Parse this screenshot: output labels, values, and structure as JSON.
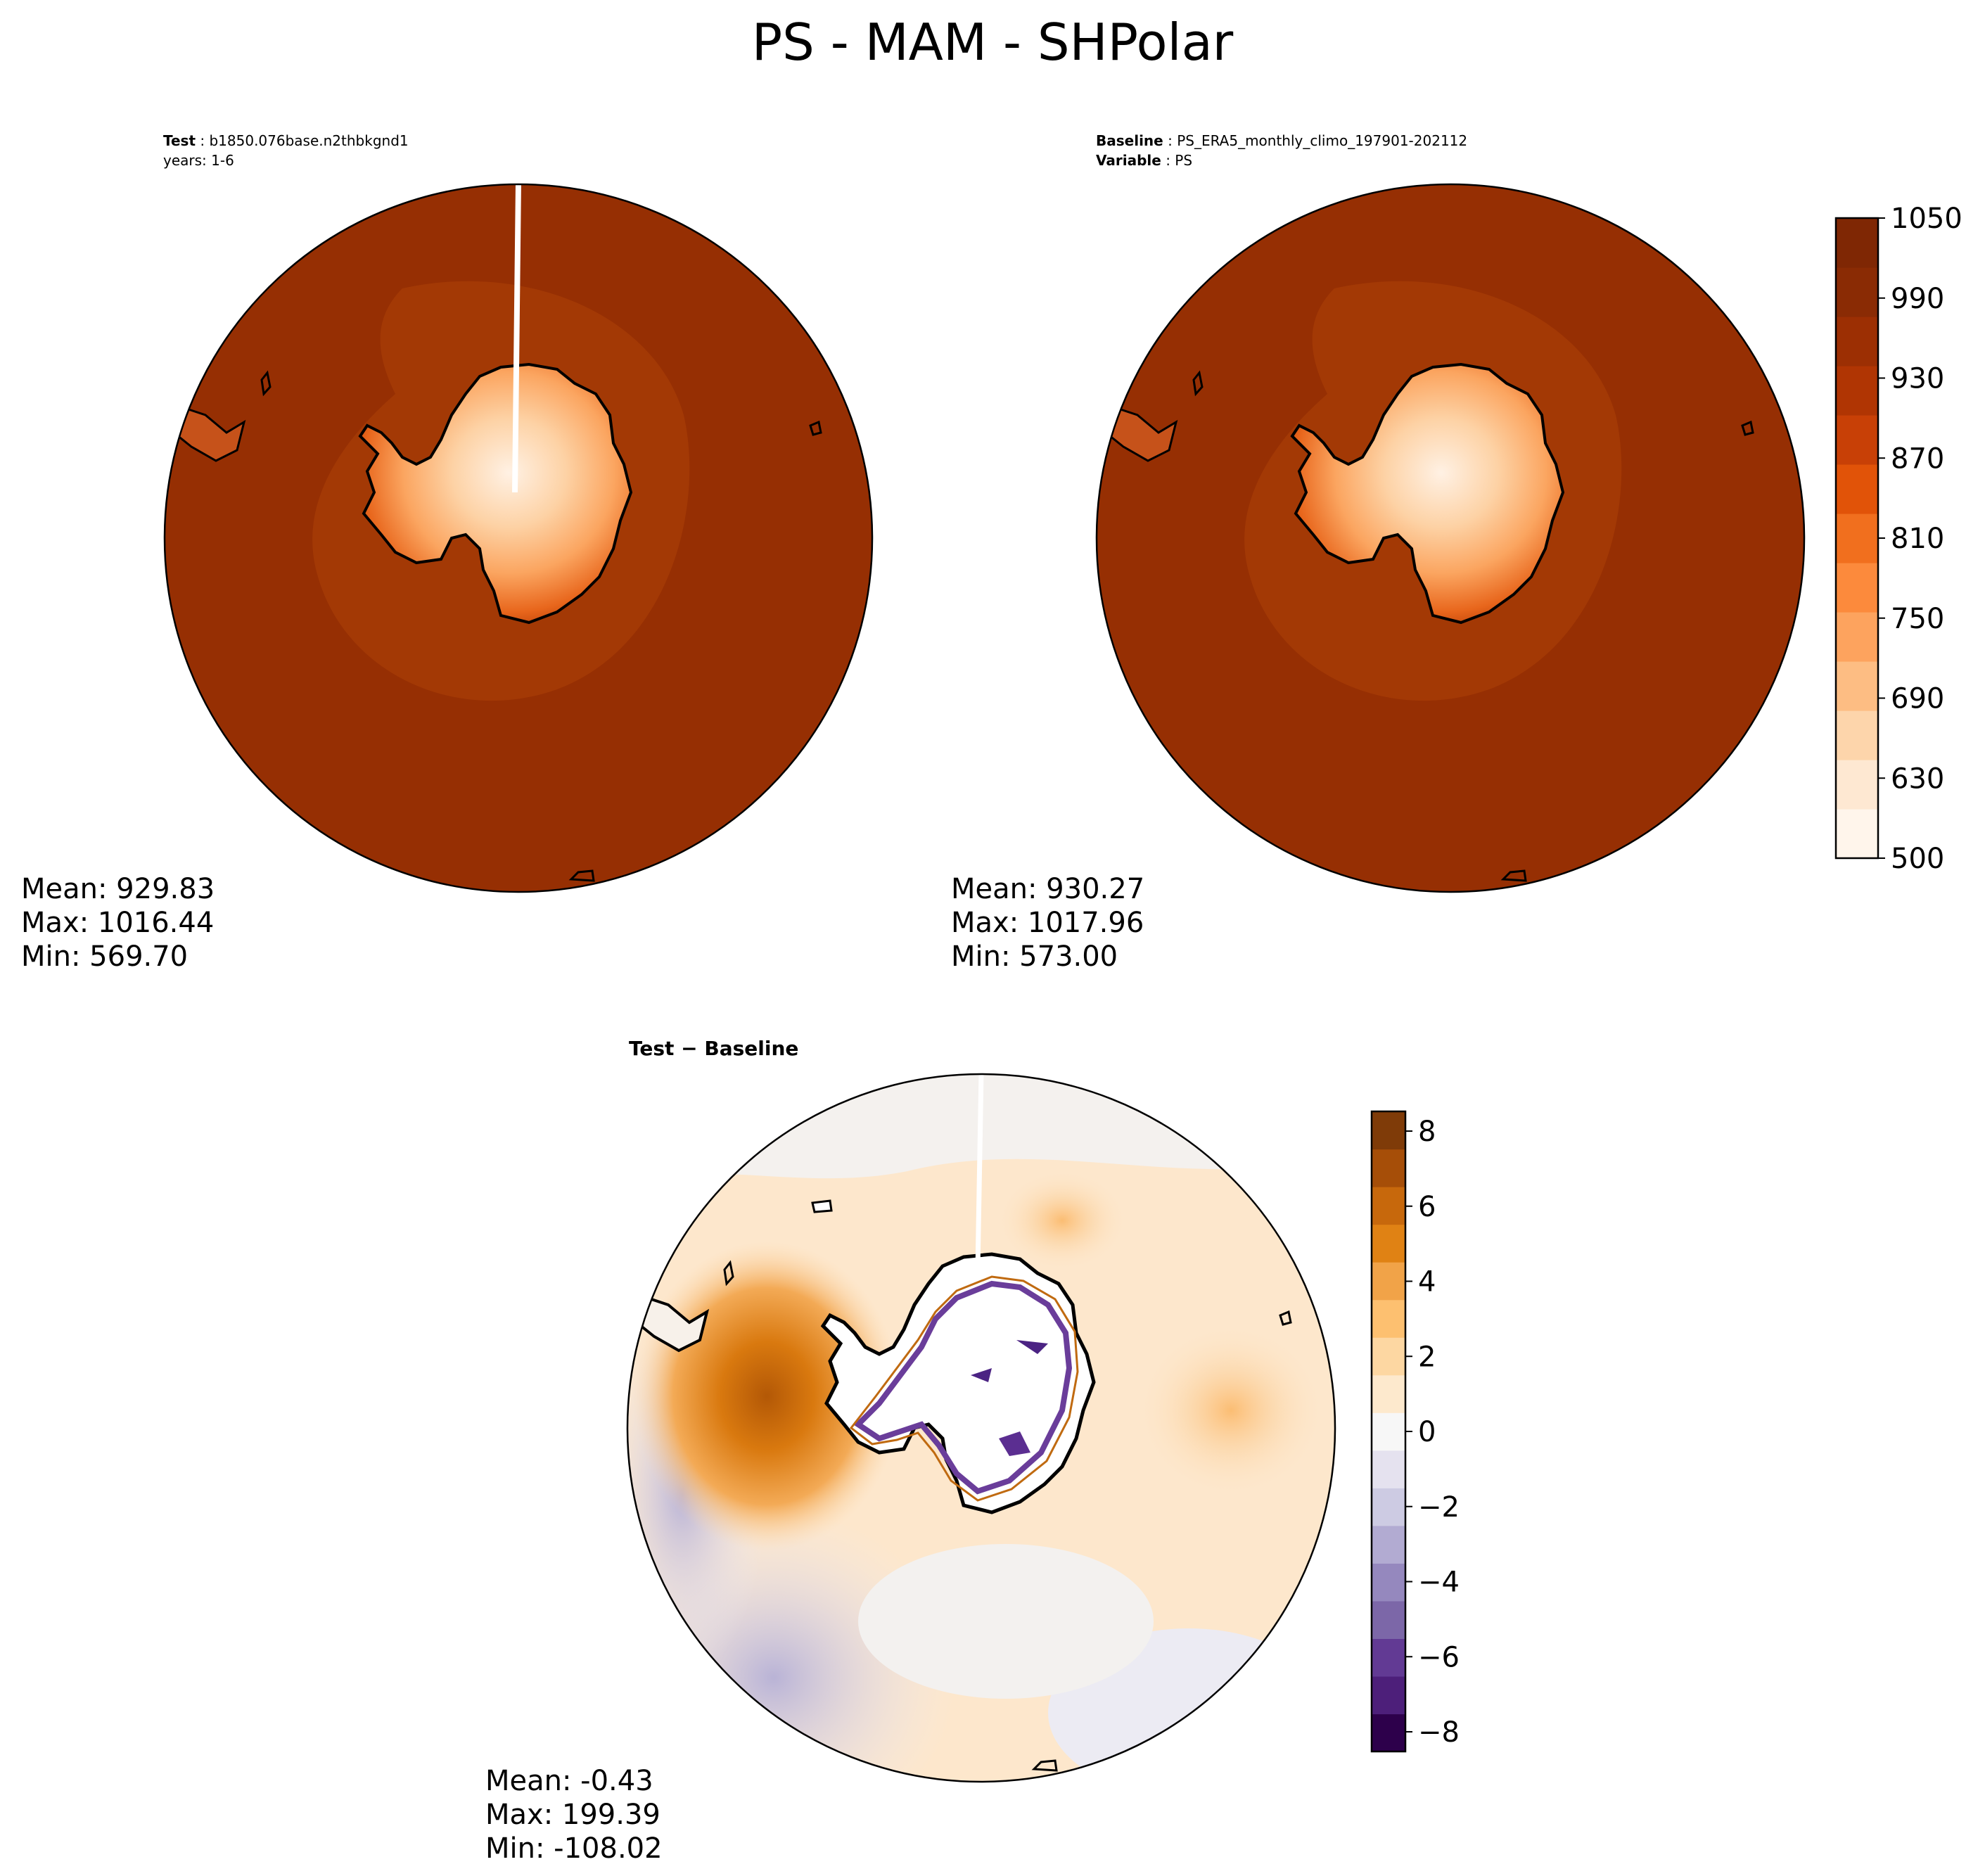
{
  "figure": {
    "title": "PS - MAM - SHPolar"
  },
  "test_panel": {
    "label": "Test",
    "case": "b1850.076base.n2thbkgnd1",
    "years": "years: 1-6",
    "stats": {
      "mean": "Mean: 929.83",
      "max": "Max: 1016.44",
      "min": "Min: 569.70"
    }
  },
  "baseline_panel": {
    "label": "Baseline",
    "case": "PS_ERA5_monthly_climo_197901-202112",
    "variable_label": "Variable",
    "variable": "PS",
    "stats": {
      "mean": "Mean: 930.27",
      "max": "Max: 1017.96",
      "min": "Min: 573.00"
    }
  },
  "diff_panel": {
    "title_left": "Test",
    "title_op": "−",
    "title_right": "Baseline",
    "stats": {
      "mean": "Mean: -0.43",
      "max": "Max: 199.39",
      "min": "Min: -108.02"
    }
  },
  "abs_colorbar": {
    "ticks": [
      "500",
      "630",
      "690",
      "750",
      "810",
      "870",
      "930",
      "990",
      "1050"
    ],
    "colors": [
      "#fff5eb",
      "#fee8d2",
      "#fdd5ab",
      "#fdbd83",
      "#fda35e",
      "#fc8a3c",
      "#f16f1e",
      "#e15308",
      "#c84006",
      "#b03503",
      "#9c2f03",
      "#8a2b04",
      "#7f2704"
    ]
  },
  "diff_colorbar": {
    "ticks": [
      "8",
      "6",
      "4",
      "2",
      "0",
      "−2",
      "−4",
      "−6",
      "−8"
    ],
    "colors": [
      "#7f3b08",
      "#a64e08",
      "#c7680c",
      "#e08214",
      "#f1a348",
      "#fdc070",
      "#fdd7a2",
      "#fde9cd",
      "#f7f7f7",
      "#e5e2ef",
      "#cdcbe3",
      "#b2abd2",
      "#9588be",
      "#7c67a8",
      "#623a94",
      "#4d1f7a",
      "#2d004b"
    ]
  },
  "map": {
    "land_outline": "Antarctica coastline",
    "projection": "south polar stereographic"
  }
}
